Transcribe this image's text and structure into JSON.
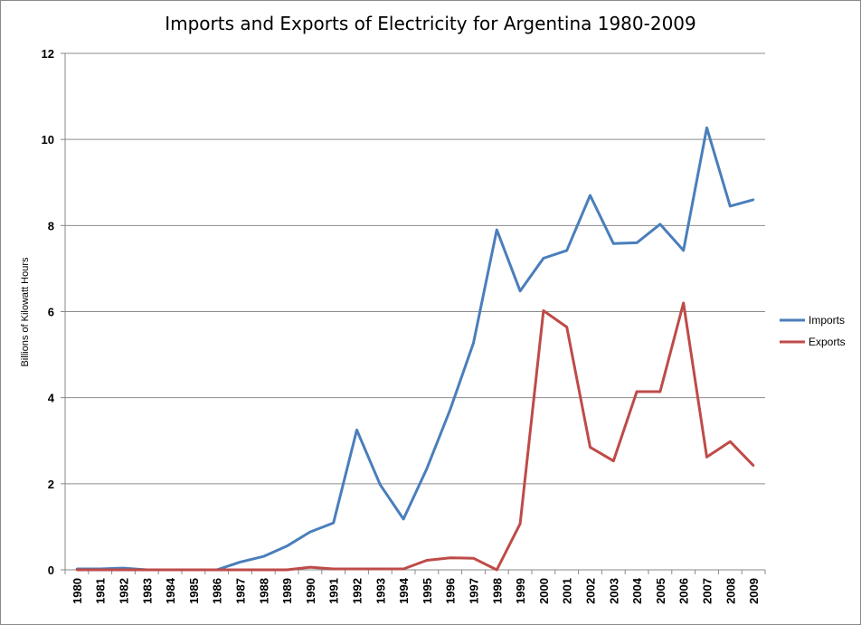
{
  "chart_data": {
    "type": "line",
    "title": "Imports and Exports of Electricity for Argentina 1980-2009",
    "xlabel": "",
    "ylabel": "Billions of Kilowatt Hours",
    "ylim": [
      0,
      12
    ],
    "yticks": [
      "0",
      "2",
      "4",
      "6",
      "8",
      "10",
      "12"
    ],
    "grid": true,
    "legend_position": "right",
    "categories": [
      "1980",
      "1981",
      "1982",
      "1983",
      "1984",
      "1985",
      "1986",
      "1987",
      "1988",
      "1989",
      "1990",
      "1991",
      "1992",
      "1993",
      "1994",
      "1995",
      "1996",
      "1997",
      "1998",
      "1999",
      "2000",
      "2001",
      "2002",
      "2003",
      "2004",
      "2005",
      "2006",
      "2007",
      "2008",
      "2009"
    ],
    "series": [
      {
        "name": "Imports",
        "color": "#4a7ebb",
        "values": [
          0.02,
          0.02,
          0.04,
          0.0,
          0.0,
          0.0,
          0.0,
          0.18,
          0.31,
          0.55,
          0.88,
          1.09,
          3.25,
          1.98,
          1.18,
          2.35,
          3.72,
          5.27,
          7.9,
          6.48,
          7.24,
          7.42,
          8.7,
          7.58,
          7.6,
          8.03,
          7.42,
          10.27,
          8.45,
          8.6
        ]
      },
      {
        "name": "Exports",
        "color": "#be4b48",
        "values": [
          0.0,
          0.0,
          0.0,
          0.0,
          0.0,
          0.0,
          0.0,
          0.0,
          0.0,
          0.0,
          0.06,
          0.02,
          0.02,
          0.02,
          0.02,
          0.22,
          0.28,
          0.27,
          0.0,
          1.07,
          6.02,
          5.64,
          2.85,
          2.53,
          4.14,
          4.14,
          6.2,
          2.62,
          2.98,
          2.42
        ]
      }
    ]
  }
}
